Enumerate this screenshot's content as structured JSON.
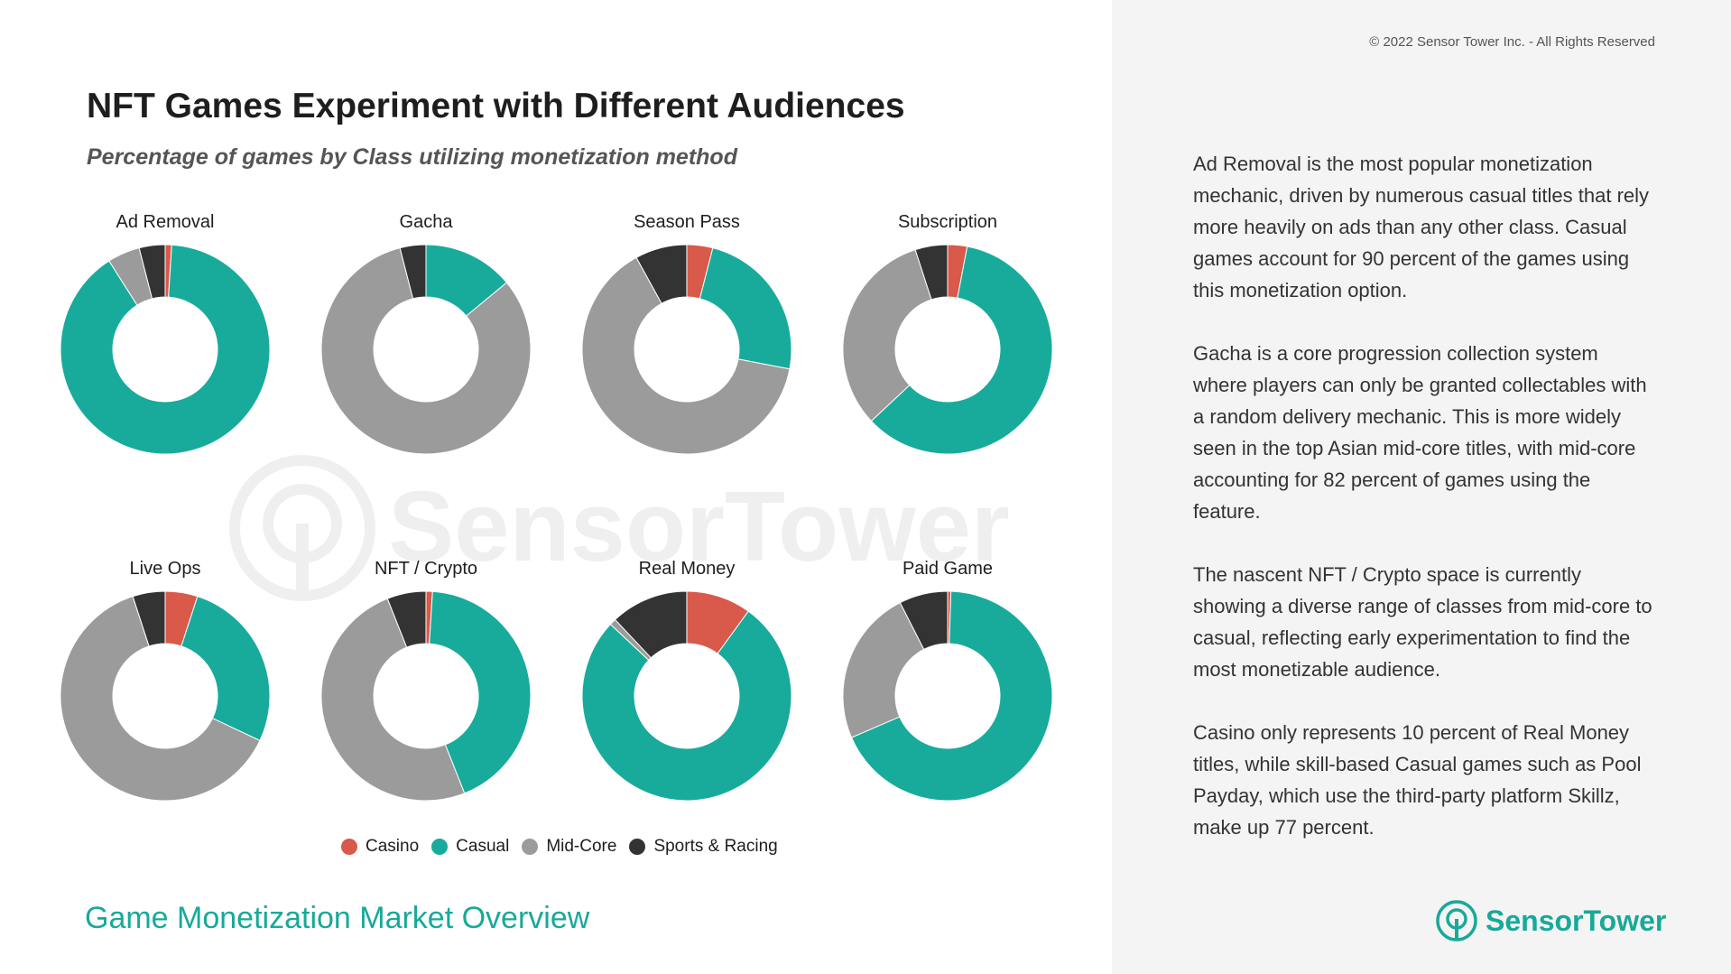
{
  "header": {
    "title": "NFT Games Experiment with Different Audiences",
    "subtitle": "Percentage of games by Class utilizing monetization method"
  },
  "colors": {
    "Casino": "#d9594a",
    "Casual": "#18ab9b",
    "Mid-Core": "#9b9b9b",
    "Sports & Racing": "#333333"
  },
  "chart_data": [
    {
      "type": "pie",
      "title": "Ad Removal",
      "labels": [
        "Casino",
        "Casual",
        "Mid-Core",
        "Sports & Racing"
      ],
      "values": [
        1,
        90,
        5,
        4
      ]
    },
    {
      "type": "pie",
      "title": "Gacha",
      "labels": [
        "Casino",
        "Casual",
        "Mid-Core",
        "Sports & Racing"
      ],
      "values": [
        0,
        14,
        82,
        4
      ]
    },
    {
      "type": "pie",
      "title": "Season Pass",
      "labels": [
        "Casino",
        "Casual",
        "Mid-Core",
        "Sports & Racing"
      ],
      "values": [
        4,
        24,
        64,
        8
      ]
    },
    {
      "type": "pie",
      "title": "Subscription",
      "labels": [
        "Casino",
        "Casual",
        "Mid-Core",
        "Sports & Racing"
      ],
      "values": [
        3,
        60,
        32,
        5
      ]
    },
    {
      "type": "pie",
      "title": "Live Ops",
      "labels": [
        "Casino",
        "Casual",
        "Mid-Core",
        "Sports & Racing"
      ],
      "values": [
        5,
        27,
        63,
        5
      ]
    },
    {
      "type": "pie",
      "title": "NFT / Crypto",
      "labels": [
        "Casino",
        "Casual",
        "Mid-Core",
        "Sports & Racing"
      ],
      "values": [
        1,
        43,
        50,
        6
      ]
    },
    {
      "type": "pie",
      "title": "Real Money",
      "labels": [
        "Casino",
        "Casual",
        "Mid-Core",
        "Sports & Racing"
      ],
      "values": [
        10,
        77,
        1,
        12
      ]
    },
    {
      "type": "pie",
      "title": "Paid Game",
      "labels": [
        "Casino",
        "Casual",
        "Mid-Core",
        "Sports & Racing"
      ],
      "values": [
        0.5,
        68,
        24,
        7.5
      ]
    }
  ],
  "legend": [
    {
      "label": "Casino",
      "color": "#d9594a"
    },
    {
      "label": "Casual",
      "color": "#18ab9b"
    },
    {
      "label": "Mid-Core",
      "color": "#9b9b9b"
    },
    {
      "label": "Sports & Racing",
      "color": "#333333"
    }
  ],
  "footer": {
    "title": "Game Monetization Market Overview"
  },
  "sidebar": {
    "copyright": "© 2022 Sensor Tower Inc. - All Rights Reserved",
    "paragraphs": [
      "Ad Removal is the most popular monetization mechanic, driven by numerous casual titles that rely more heavily on ads than any other class. Casual games account for 90 percent of the games using this monetization option.",
      "Gacha is a core progression collection system where players can only be granted collectables with a random delivery mechanic. This is more widely seen in the top Asian mid-core titles, with mid-core accounting for 82 percent of games using the feature.",
      "The nascent NFT / Crypto space is currently showing a diverse range of classes from mid-core to casual, reflecting early experimentation to find the most monetizable audience.",
      "Casino only represents 10 percent of Real Money titles, while skill-based Casual games such as Pool Payday, which use the third-party platform Skillz, make up 77 percent."
    ]
  },
  "brand": {
    "name": "SensorTower",
    "watermark": "SensorTower",
    "icon": "sensor-tower-logo-icon"
  }
}
